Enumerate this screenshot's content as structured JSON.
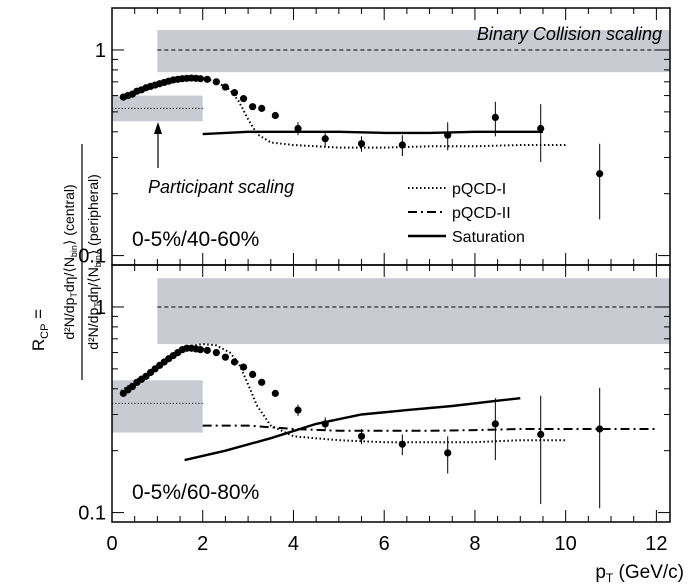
{
  "chart_data": [
    {
      "type": "scatter",
      "panel": "top",
      "label": "0-5%/40-60%",
      "xlim": [
        0,
        12.3
      ],
      "ylim": [
        0.09,
        1.6
      ],
      "yscale": "log",
      "grid": false,
      "legend_placement": "lower-right",
      "y_ticks": [
        {
          "value": 0.1,
          "label": "0.1"
        },
        {
          "value": 1,
          "label": "1"
        }
      ],
      "annotations": {
        "binary": "Binary Collision scaling",
        "participant": "Participant scaling"
      },
      "bands": [
        {
          "x": [
            1.0,
            12.3
          ],
          "y": [
            0.78,
            1.25
          ],
          "ref": 1.0,
          "color": "#c8cbd2"
        },
        {
          "x": [
            0.0,
            2.0
          ],
          "y": [
            0.45,
            0.6
          ],
          "ref": 0.52,
          "color": "#c8cbd2"
        }
      ],
      "points": [
        {
          "x": 0.25,
          "y": 0.59,
          "err": 0
        },
        {
          "x": 0.35,
          "y": 0.6,
          "err": 0
        },
        {
          "x": 0.45,
          "y": 0.61,
          "err": 0
        },
        {
          "x": 0.55,
          "y": 0.63,
          "err": 0
        },
        {
          "x": 0.65,
          "y": 0.64,
          "err": 0
        },
        {
          "x": 0.75,
          "y": 0.655,
          "err": 0
        },
        {
          "x": 0.85,
          "y": 0.665,
          "err": 0
        },
        {
          "x": 0.95,
          "y": 0.675,
          "err": 0
        },
        {
          "x": 1.05,
          "y": 0.685,
          "err": 0
        },
        {
          "x": 1.15,
          "y": 0.695,
          "err": 0
        },
        {
          "x": 1.25,
          "y": 0.705,
          "err": 0
        },
        {
          "x": 1.35,
          "y": 0.715,
          "err": 0
        },
        {
          "x": 1.45,
          "y": 0.72,
          "err": 0
        },
        {
          "x": 1.55,
          "y": 0.725,
          "err": 0
        },
        {
          "x": 1.65,
          "y": 0.728,
          "err": 0
        },
        {
          "x": 1.75,
          "y": 0.73,
          "err": 0
        },
        {
          "x": 1.85,
          "y": 0.728,
          "err": 0
        },
        {
          "x": 1.95,
          "y": 0.725,
          "err": 0
        },
        {
          "x": 2.1,
          "y": 0.72,
          "err": 0
        },
        {
          "x": 2.3,
          "y": 0.7,
          "err": 0
        },
        {
          "x": 2.5,
          "y": 0.66,
          "err": 0
        },
        {
          "x": 2.7,
          "y": 0.62,
          "err": 0
        },
        {
          "x": 2.9,
          "y": 0.58,
          "err": 0
        },
        {
          "x": 3.1,
          "y": 0.53,
          "err": 0
        },
        {
          "x": 3.3,
          "y": 0.52,
          "err": 0
        },
        {
          "x": 3.6,
          "y": 0.48,
          "err": 0
        },
        {
          "x": 4.1,
          "y": 0.415,
          "err": 0.03
        },
        {
          "x": 4.7,
          "y": 0.37,
          "err": 0.03
        },
        {
          "x": 5.5,
          "y": 0.35,
          "err": 0.03
        },
        {
          "x": 6.4,
          "y": 0.345,
          "err": 0.04
        },
        {
          "x": 7.4,
          "y": 0.385,
          "err": 0.06
        },
        {
          "x": 8.45,
          "y": 0.47,
          "err": 0.09
        },
        {
          "x": 9.45,
          "y": 0.415,
          "err": 0.13
        },
        {
          "x": 10.75,
          "y": 0.25,
          "err": 0.1
        }
      ],
      "curves": [
        {
          "name": "pQCD-I",
          "style": "dotted",
          "x": [
            0.2,
            0.6,
            1.0,
            1.4,
            1.7,
            2.0,
            2.3,
            2.6,
            2.8,
            3.0,
            3.2,
            3.5,
            4.0,
            5.0,
            6.0,
            7.0,
            8.0,
            9.0,
            10.0
          ],
          "y": [
            0.59,
            0.64,
            0.68,
            0.715,
            0.735,
            0.73,
            0.7,
            0.64,
            0.56,
            0.46,
            0.39,
            0.355,
            0.345,
            0.335,
            0.335,
            0.34,
            0.34,
            0.345,
            0.345
          ]
        },
        {
          "name": "pQCD-II",
          "style": "dashdot",
          "x": [],
          "y": []
        },
        {
          "name": "Saturation",
          "style": "solid",
          "x": [
            2.0,
            3.0,
            4.0,
            5.0,
            6.0,
            7.0,
            8.0,
            9.0,
            9.5
          ],
          "y": [
            0.39,
            0.4,
            0.4,
            0.4,
            0.395,
            0.395,
            0.4,
            0.4,
            0.4
          ]
        }
      ],
      "legend": [
        {
          "name": "pQCD-I",
          "style": "dotted"
        },
        {
          "name": "pQCD-II",
          "style": "dashdot"
        },
        {
          "name": "Saturation",
          "style": "solid"
        }
      ]
    },
    {
      "type": "scatter",
      "panel": "bottom",
      "label": "0-5%/60-80%",
      "xlim": [
        0,
        12.3
      ],
      "ylim": [
        0.09,
        1.6
      ],
      "yscale": "log",
      "grid": false,
      "y_ticks": [
        {
          "value": 0.1,
          "label": "0.1"
        },
        {
          "value": 1,
          "label": "1"
        }
      ],
      "x_ticks": [
        {
          "value": 0,
          "label": "0"
        },
        {
          "value": 2,
          "label": "2"
        },
        {
          "value": 4,
          "label": "4"
        },
        {
          "value": 6,
          "label": "6"
        },
        {
          "value": 8,
          "label": "8"
        },
        {
          "value": 10,
          "label": "10"
        },
        {
          "value": 12,
          "label": "12"
        }
      ],
      "bands": [
        {
          "x": [
            1.0,
            12.3
          ],
          "y": [
            0.66,
            1.38
          ],
          "ref": 1.0,
          "color": "#c8cbd2"
        },
        {
          "x": [
            0.0,
            2.0
          ],
          "y": [
            0.245,
            0.44
          ],
          "ref": 0.34,
          "color": "#c8cbd2"
        }
      ],
      "points": [
        {
          "x": 0.25,
          "y": 0.38,
          "err": 0
        },
        {
          "x": 0.35,
          "y": 0.395,
          "err": 0
        },
        {
          "x": 0.45,
          "y": 0.41,
          "err": 0
        },
        {
          "x": 0.55,
          "y": 0.43,
          "err": 0
        },
        {
          "x": 0.65,
          "y": 0.445,
          "err": 0
        },
        {
          "x": 0.75,
          "y": 0.46,
          "err": 0
        },
        {
          "x": 0.85,
          "y": 0.48,
          "err": 0
        },
        {
          "x": 0.95,
          "y": 0.5,
          "err": 0
        },
        {
          "x": 1.05,
          "y": 0.52,
          "err": 0
        },
        {
          "x": 1.15,
          "y": 0.54,
          "err": 0
        },
        {
          "x": 1.25,
          "y": 0.56,
          "err": 0
        },
        {
          "x": 1.35,
          "y": 0.58,
          "err": 0
        },
        {
          "x": 1.45,
          "y": 0.6,
          "err": 0
        },
        {
          "x": 1.55,
          "y": 0.62,
          "err": 0
        },
        {
          "x": 1.65,
          "y": 0.63,
          "err": 0
        },
        {
          "x": 1.75,
          "y": 0.63,
          "err": 0
        },
        {
          "x": 1.85,
          "y": 0.625,
          "err": 0
        },
        {
          "x": 1.95,
          "y": 0.62,
          "err": 0
        },
        {
          "x": 2.1,
          "y": 0.615,
          "err": 0
        },
        {
          "x": 2.3,
          "y": 0.6,
          "err": 0
        },
        {
          "x": 2.5,
          "y": 0.57,
          "err": 0
        },
        {
          "x": 2.7,
          "y": 0.54,
          "err": 0
        },
        {
          "x": 2.9,
          "y": 0.51,
          "err": 0
        },
        {
          "x": 3.1,
          "y": 0.47,
          "err": 0
        },
        {
          "x": 3.3,
          "y": 0.43,
          "err": 0
        },
        {
          "x": 3.6,
          "y": 0.38,
          "err": 0
        },
        {
          "x": 4.1,
          "y": 0.315,
          "err": 0.02
        },
        {
          "x": 4.7,
          "y": 0.27,
          "err": 0.02
        },
        {
          "x": 5.5,
          "y": 0.235,
          "err": 0.02
        },
        {
          "x": 6.4,
          "y": 0.215,
          "err": 0.025
        },
        {
          "x": 7.4,
          "y": 0.195,
          "err": 0.04
        },
        {
          "x": 8.45,
          "y": 0.27,
          "err": 0.09
        },
        {
          "x": 9.45,
          "y": 0.24,
          "err": 0.13
        },
        {
          "x": 10.75,
          "y": 0.255,
          "err": 0.15
        }
      ],
      "curves": [
        {
          "name": "pQCD-I",
          "style": "dotted",
          "x": [
            0.2,
            0.6,
            1.0,
            1.4,
            1.7,
            2.0,
            2.3,
            2.6,
            2.8,
            3.0,
            3.2,
            3.5,
            4.0,
            5.0,
            6.0,
            7.0,
            8.0,
            9.0,
            10.0
          ],
          "y": [
            0.39,
            0.45,
            0.52,
            0.6,
            0.645,
            0.66,
            0.65,
            0.6,
            0.53,
            0.42,
            0.33,
            0.265,
            0.235,
            0.225,
            0.22,
            0.22,
            0.22,
            0.225,
            0.225
          ]
        },
        {
          "name": "pQCD-II",
          "style": "dashdot",
          "x": [
            2.0,
            3.0,
            4.0,
            5.0,
            6.0,
            7.0,
            8.0,
            9.0,
            10.0,
            11.0,
            12.0
          ],
          "y": [
            0.265,
            0.265,
            0.255,
            0.25,
            0.25,
            0.25,
            0.252,
            0.255,
            0.255,
            0.255,
            0.255
          ]
        },
        {
          "name": "Saturation",
          "style": "solid",
          "x": [
            1.6,
            2.5,
            3.5,
            4.5,
            5.5,
            6.5,
            7.5,
            8.5,
            9.0
          ],
          "y": [
            0.18,
            0.2,
            0.23,
            0.27,
            0.3,
            0.315,
            0.33,
            0.35,
            0.36
          ]
        }
      ]
    }
  ],
  "axes": {
    "xlabel_main": "p",
    "xlabel_sub": "T",
    "xlabel_unit": " (GeV/c)",
    "ylabel_lhs": "R",
    "ylabel_lhs_sub": "CP",
    "ylabel_eq": " =",
    "ylabel_num": "d²N/dp",
    "ylabel_num_sub": "T",
    "ylabel_num_rest": "dη/⟨N",
    "ylabel_num_sub2": "bin",
    "ylabel_num_tail": "⟩ (central)",
    "ylabel_den": "d²N/dp",
    "ylabel_den_sub": "T",
    "ylabel_den_rest": "dη/⟨N",
    "ylabel_den_sub2": "bin",
    "ylabel_den_tail": "⟩ (peripheral)"
  }
}
